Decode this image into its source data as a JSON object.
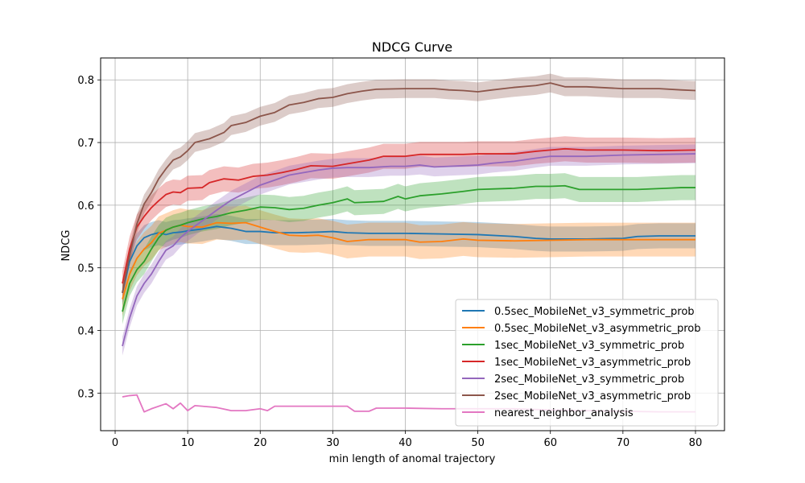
{
  "chart_data": {
    "type": "line",
    "title": "NDCG Curve",
    "xlabel": "min length of anomal trajectory",
    "ylabel": "NDCG",
    "xlim": [
      -2,
      84
    ],
    "ylim": [
      0.24,
      0.835
    ],
    "xticks": [
      0,
      10,
      20,
      30,
      40,
      50,
      60,
      70,
      80
    ],
    "yticks": [
      0.3,
      0.4,
      0.5,
      0.6,
      0.7,
      0.8
    ],
    "grid": true,
    "legend_position": "lower right",
    "series": [
      {
        "name": "0.5sec_MobileNet_v3_symmetric_prob",
        "color": "#1f77b4",
        "points": [
          [
            1,
            0.46
          ],
          [
            2,
            0.51
          ],
          [
            3,
            0.535
          ],
          [
            4,
            0.548
          ],
          [
            5,
            0.553
          ],
          [
            6,
            0.556
          ],
          [
            7,
            0.553
          ],
          [
            8,
            0.556
          ],
          [
            9,
            0.557
          ],
          [
            10,
            0.559
          ],
          [
            12,
            0.562
          ],
          [
            14,
            0.566
          ],
          [
            16,
            0.563
          ],
          [
            18,
            0.558
          ],
          [
            20,
            0.558
          ],
          [
            22,
            0.556
          ],
          [
            25,
            0.556
          ],
          [
            28,
            0.557
          ],
          [
            30,
            0.558
          ],
          [
            32,
            0.556
          ],
          [
            35,
            0.555
          ],
          [
            40,
            0.555
          ],
          [
            45,
            0.554
          ],
          [
            50,
            0.553
          ],
          [
            55,
            0.55
          ],
          [
            58,
            0.547
          ],
          [
            60,
            0.546
          ],
          [
            65,
            0.546
          ],
          [
            70,
            0.547
          ],
          [
            72,
            0.55
          ],
          [
            75,
            0.551
          ],
          [
            80,
            0.551
          ]
        ],
        "band": 0.02
      },
      {
        "name": "0.5sec_MobileNet_v3_asymmetric_prob",
        "color": "#ff7f0e",
        "points": [
          [
            1,
            0.45
          ],
          [
            2,
            0.49
          ],
          [
            3,
            0.515
          ],
          [
            4,
            0.53
          ],
          [
            5,
            0.54
          ],
          [
            6,
            0.555
          ],
          [
            7,
            0.56
          ],
          [
            8,
            0.565
          ],
          [
            9,
            0.568
          ],
          [
            10,
            0.566
          ],
          [
            12,
            0.565
          ],
          [
            14,
            0.572
          ],
          [
            16,
            0.571
          ],
          [
            18,
            0.572
          ],
          [
            20,
            0.565
          ],
          [
            22,
            0.558
          ],
          [
            24,
            0.552
          ],
          [
            26,
            0.551
          ],
          [
            28,
            0.552
          ],
          [
            30,
            0.548
          ],
          [
            32,
            0.542
          ],
          [
            35,
            0.545
          ],
          [
            40,
            0.545
          ],
          [
            42,
            0.541
          ],
          [
            45,
            0.542
          ],
          [
            48,
            0.546
          ],
          [
            50,
            0.544
          ],
          [
            55,
            0.543
          ],
          [
            60,
            0.544
          ],
          [
            65,
            0.545
          ],
          [
            70,
            0.545
          ],
          [
            75,
            0.545
          ],
          [
            80,
            0.545
          ]
        ],
        "band": 0.027
      },
      {
        "name": "1sec_MobileNet_v3_symmetric_prob",
        "color": "#2ca02c",
        "points": [
          [
            1,
            0.43
          ],
          [
            2,
            0.475
          ],
          [
            3,
            0.497
          ],
          [
            4,
            0.51
          ],
          [
            5,
            0.53
          ],
          [
            6,
            0.548
          ],
          [
            7,
            0.56
          ],
          [
            8,
            0.565
          ],
          [
            9,
            0.568
          ],
          [
            10,
            0.572
          ],
          [
            12,
            0.578
          ],
          [
            14,
            0.582
          ],
          [
            16,
            0.588
          ],
          [
            18,
            0.592
          ],
          [
            20,
            0.597
          ],
          [
            22,
            0.596
          ],
          [
            24,
            0.593
          ],
          [
            26,
            0.595
          ],
          [
            28,
            0.6
          ],
          [
            30,
            0.604
          ],
          [
            32,
            0.61
          ],
          [
            33,
            0.604
          ],
          [
            35,
            0.605
          ],
          [
            37,
            0.606
          ],
          [
            39,
            0.614
          ],
          [
            40,
            0.61
          ],
          [
            42,
            0.615
          ],
          [
            45,
            0.618
          ],
          [
            48,
            0.622
          ],
          [
            50,
            0.625
          ],
          [
            55,
            0.627
          ],
          [
            58,
            0.63
          ],
          [
            60,
            0.63
          ],
          [
            62,
            0.631
          ],
          [
            64,
            0.625
          ],
          [
            68,
            0.625
          ],
          [
            72,
            0.625
          ],
          [
            76,
            0.627
          ],
          [
            78,
            0.628
          ],
          [
            80,
            0.628
          ]
        ],
        "band": 0.02
      },
      {
        "name": "1sec_MobileNet_v3_asymmetric_prob",
        "color": "#d62728",
        "points": [
          [
            1,
            0.475
          ],
          [
            2,
            0.53
          ],
          [
            3,
            0.565
          ],
          [
            4,
            0.582
          ],
          [
            5,
            0.596
          ],
          [
            6,
            0.607
          ],
          [
            7,
            0.617
          ],
          [
            8,
            0.621
          ],
          [
            9,
            0.62
          ],
          [
            10,
            0.627
          ],
          [
            12,
            0.628
          ],
          [
            13,
            0.636
          ],
          [
            15,
            0.642
          ],
          [
            17,
            0.64
          ],
          [
            19,
            0.646
          ],
          [
            21,
            0.648
          ],
          [
            23,
            0.652
          ],
          [
            25,
            0.657
          ],
          [
            27,
            0.663
          ],
          [
            30,
            0.662
          ],
          [
            32,
            0.666
          ],
          [
            35,
            0.672
          ],
          [
            37,
            0.678
          ],
          [
            40,
            0.678
          ],
          [
            42,
            0.681
          ],
          [
            45,
            0.681
          ],
          [
            48,
            0.681
          ],
          [
            50,
            0.682
          ],
          [
            55,
            0.682
          ],
          [
            58,
            0.686
          ],
          [
            60,
            0.688
          ],
          [
            62,
            0.69
          ],
          [
            65,
            0.688
          ],
          [
            70,
            0.688
          ],
          [
            75,
            0.687
          ],
          [
            80,
            0.688
          ]
        ],
        "band": 0.02
      },
      {
        "name": "2sec_MobileNet_v3_symmetric_prob",
        "color": "#9467bd",
        "points": [
          [
            1,
            0.375
          ],
          [
            2,
            0.42
          ],
          [
            3,
            0.455
          ],
          [
            4,
            0.475
          ],
          [
            5,
            0.49
          ],
          [
            6,
            0.51
          ],
          [
            7,
            0.528
          ],
          [
            8,
            0.535
          ],
          [
            9,
            0.548
          ],
          [
            10,
            0.558
          ],
          [
            12,
            0.575
          ],
          [
            14,
            0.592
          ],
          [
            16,
            0.608
          ],
          [
            18,
            0.62
          ],
          [
            20,
            0.632
          ],
          [
            22,
            0.64
          ],
          [
            24,
            0.648
          ],
          [
            26,
            0.652
          ],
          [
            28,
            0.656
          ],
          [
            30,
            0.659
          ],
          [
            32,
            0.66
          ],
          [
            35,
            0.66
          ],
          [
            38,
            0.662
          ],
          [
            40,
            0.662
          ],
          [
            42,
            0.664
          ],
          [
            44,
            0.661
          ],
          [
            46,
            0.662
          ],
          [
            50,
            0.664
          ],
          [
            52,
            0.667
          ],
          [
            55,
            0.67
          ],
          [
            58,
            0.675
          ],
          [
            60,
            0.678
          ],
          [
            65,
            0.678
          ],
          [
            70,
            0.68
          ],
          [
            75,
            0.681
          ],
          [
            80,
            0.682
          ]
        ],
        "band": 0.015
      },
      {
        "name": "2sec_MobileNet_v3_asymmetric_prob",
        "color": "#8c564b",
        "points": [
          [
            1,
            0.46
          ],
          [
            2,
            0.52
          ],
          [
            3,
            0.57
          ],
          [
            4,
            0.602
          ],
          [
            5,
            0.62
          ],
          [
            6,
            0.642
          ],
          [
            7,
            0.658
          ],
          [
            8,
            0.672
          ],
          [
            9,
            0.677
          ],
          [
            10,
            0.687
          ],
          [
            11,
            0.7
          ],
          [
            13,
            0.706
          ],
          [
            15,
            0.716
          ],
          [
            16,
            0.727
          ],
          [
            18,
            0.732
          ],
          [
            20,
            0.742
          ],
          [
            22,
            0.748
          ],
          [
            24,
            0.76
          ],
          [
            26,
            0.764
          ],
          [
            28,
            0.77
          ],
          [
            30,
            0.772
          ],
          [
            32,
            0.778
          ],
          [
            34,
            0.782
          ],
          [
            36,
            0.785
          ],
          [
            40,
            0.786
          ],
          [
            44,
            0.786
          ],
          [
            46,
            0.784
          ],
          [
            48,
            0.783
          ],
          [
            50,
            0.781
          ],
          [
            52,
            0.784
          ],
          [
            55,
            0.788
          ],
          [
            58,
            0.791
          ],
          [
            60,
            0.795
          ],
          [
            62,
            0.789
          ],
          [
            65,
            0.789
          ],
          [
            70,
            0.786
          ],
          [
            75,
            0.786
          ],
          [
            78,
            0.784
          ],
          [
            80,
            0.783
          ]
        ],
        "band": 0.015
      },
      {
        "name": "nearest_neighbor_analysis",
        "color": "#e377c2",
        "points": [
          [
            1,
            0.294
          ],
          [
            2,
            0.296
          ],
          [
            3,
            0.297
          ],
          [
            4,
            0.27
          ],
          [
            5,
            0.275
          ],
          [
            7,
            0.283
          ],
          [
            8,
            0.275
          ],
          [
            9,
            0.284
          ],
          [
            10,
            0.272
          ],
          [
            11,
            0.28
          ],
          [
            12,
            0.279
          ],
          [
            14,
            0.277
          ],
          [
            16,
            0.272
          ],
          [
            18,
            0.272
          ],
          [
            20,
            0.275
          ],
          [
            21,
            0.272
          ],
          [
            22,
            0.279
          ],
          [
            25,
            0.279
          ],
          [
            28,
            0.279
          ],
          [
            30,
            0.279
          ],
          [
            32,
            0.279
          ],
          [
            33,
            0.271
          ],
          [
            35,
            0.271
          ],
          [
            36,
            0.276
          ],
          [
            40,
            0.276
          ],
          [
            45,
            0.275
          ],
          [
            50,
            0.275
          ],
          [
            55,
            0.275
          ],
          [
            60,
            0.273
          ],
          [
            65,
            0.272
          ],
          [
            70,
            0.271
          ],
          [
            75,
            0.27
          ],
          [
            80,
            0.27
          ]
        ],
        "band": 0
      }
    ]
  }
}
